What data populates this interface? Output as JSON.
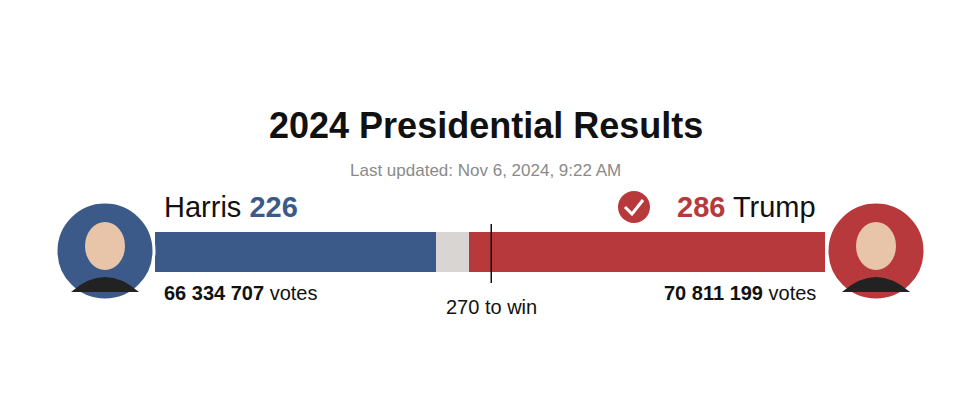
{
  "chart_data": {
    "type": "bar",
    "title": "2024 Presidential Results",
    "subtitle": "Last updated: Nov 6, 2024, 9:22 AM",
    "orientation": "horizontal",
    "stacked": true,
    "tick_labels": false,
    "grid": false,
    "xlim": [
      0,
      538
    ],
    "categories": [
      null
    ],
    "series": [
      {
        "name": "Harris",
        "color": "#3b5a8a",
        "values": [
          226
        ],
        "popular_votes": {
          "value": 66334707,
          "label": "66 334 707"
        }
      },
      {
        "color": "#d9d5d2",
        "values": [
          26
        ]
      },
      {
        "name": "Trump",
        "color": "#b8393b",
        "values": [
          286
        ],
        "popular_votes": {
          "value": 70811199,
          "label": "70 811 199"
        }
      }
    ],
    "votes_unit": "votes",
    "threshold": {
      "value": 270,
      "label": "270 to win"
    }
  }
}
